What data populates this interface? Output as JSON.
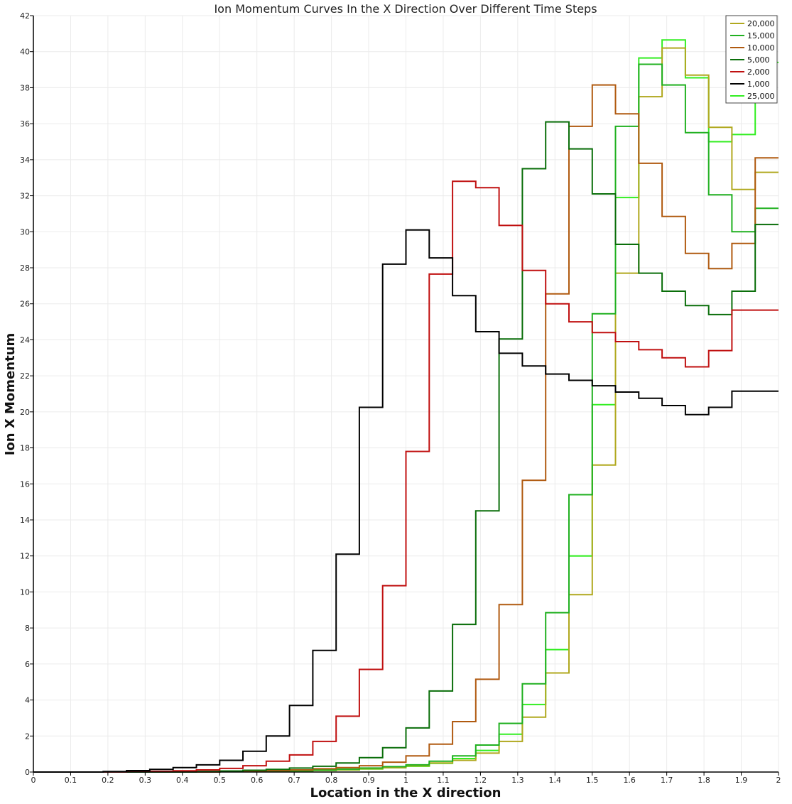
{
  "chart_data": {
    "type": "line",
    "step": true,
    "title": "Ion Momentum Curves In the X Direction Over Different Time Steps",
    "xlabel": "Location in the X direction",
    "ylabel": "Ion X Momentum",
    "xlim": [
      0,
      2
    ],
    "ylim": [
      0,
      42
    ],
    "xticks": [
      "0",
      "0.1",
      "0.2",
      "0.3",
      "0.4",
      "0.5",
      "0.6",
      "0.7",
      "0.8",
      "0.9",
      "1",
      "1.1",
      "1.2",
      "1.3",
      "1.4",
      "1.5",
      "1.6",
      "1.7",
      "1.8",
      "1.9",
      "2"
    ],
    "yticks": [
      "0",
      "2",
      "4",
      "6",
      "8",
      "10",
      "12",
      "14",
      "16",
      "18",
      "20",
      "22",
      "24",
      "26",
      "28",
      "30",
      "32",
      "34",
      "36",
      "38",
      "40",
      "42"
    ],
    "grid": true,
    "legend_position": "top-right",
    "bin_edges": [
      0,
      0.0625,
      0.125,
      0.1875,
      0.25,
      0.3125,
      0.375,
      0.4375,
      0.5,
      0.5625,
      0.625,
      0.6875,
      0.75,
      0.8125,
      0.875,
      0.9375,
      1.0,
      1.0625,
      1.125,
      1.1875,
      1.25,
      1.3125,
      1.375,
      1.4375,
      1.5,
      1.5625,
      1.625,
      1.6875,
      1.75,
      1.8125,
      1.875,
      1.9375,
      2.0
    ],
    "series": [
      {
        "name": "20,000",
        "color": "#b0a81e",
        "values": [
          0,
          0,
          0,
          0,
          0,
          0,
          0,
          0,
          0.02,
          0.03,
          0.05,
          0.07,
          0.1,
          0.13,
          0.18,
          0.25,
          0.35,
          0.5,
          0.65,
          1.05,
          1.7,
          3.05,
          5.5,
          9.85,
          17.05,
          27.7,
          37.5,
          40.2,
          38.7,
          35.8,
          32.35,
          33.3
        ]
      },
      {
        "name": "15,000",
        "color": "#20b020",
        "values": [
          0,
          0,
          0,
          0,
          0,
          0,
          0,
          0,
          0.02,
          0.03,
          0.05,
          0.08,
          0.12,
          0.16,
          0.22,
          0.3,
          0.4,
          0.6,
          0.9,
          1.5,
          2.7,
          4.9,
          8.85,
          15.4,
          25.45,
          35.85,
          39.3,
          38.15,
          35.5,
          32.05,
          30.0,
          31.3
        ]
      },
      {
        "name": "10,000",
        "color": "#b05a10",
        "values": [
          0,
          0,
          0,
          0,
          0,
          0,
          0,
          0,
          0.03,
          0.05,
          0.08,
          0.12,
          0.18,
          0.25,
          0.35,
          0.55,
          0.9,
          1.55,
          2.8,
          5.15,
          9.3,
          16.2,
          26.55,
          35.85,
          38.15,
          36.55,
          33.8,
          30.85,
          28.8,
          27.95,
          29.35,
          34.1
        ]
      },
      {
        "name": "5,000",
        "color": "#0a6e0a",
        "values": [
          0,
          0,
          0,
          0,
          0,
          0,
          0,
          0.03,
          0.06,
          0.1,
          0.15,
          0.22,
          0.32,
          0.5,
          0.8,
          1.35,
          2.45,
          4.5,
          8.2,
          14.5,
          24.05,
          33.5,
          36.1,
          34.6,
          32.1,
          29.3,
          27.7,
          26.7,
          25.9,
          25.4,
          26.7,
          30.4
        ]
      },
      {
        "name": "2,000",
        "color": "#c01010",
        "values": [
          0,
          0,
          0,
          0,
          0.02,
          0.04,
          0.07,
          0.12,
          0.2,
          0.35,
          0.6,
          0.95,
          1.7,
          3.1,
          5.7,
          10.35,
          17.8,
          27.65,
          32.8,
          32.45,
          30.35,
          27.85,
          26.0,
          25.0,
          24.4,
          23.9,
          23.45,
          23.0,
          22.5,
          23.4,
          25.65,
          25.65
        ]
      },
      {
        "name": "1,000",
        "color": "#000000",
        "values": [
          0,
          0,
          0,
          0.03,
          0.08,
          0.15,
          0.25,
          0.4,
          0.65,
          1.15,
          2.0,
          3.7,
          6.75,
          12.1,
          20.25,
          28.2,
          30.1,
          28.55,
          26.45,
          24.45,
          23.25,
          22.55,
          22.1,
          21.75,
          21.45,
          21.1,
          20.75,
          20.35,
          19.85,
          20.25,
          21.15,
          21.15
        ]
      },
      {
        "name": "25,000",
        "color": "#33ee22",
        "values": [
          0,
          0,
          0,
          0,
          0,
          0,
          0,
          0,
          0.02,
          0.03,
          0.04,
          0.06,
          0.09,
          0.12,
          0.17,
          0.24,
          0.32,
          0.48,
          0.75,
          1.2,
          2.1,
          3.75,
          6.8,
          12.0,
          20.4,
          31.9,
          39.65,
          40.65,
          38.55,
          35.0,
          35.4,
          39.4
        ]
      }
    ]
  }
}
